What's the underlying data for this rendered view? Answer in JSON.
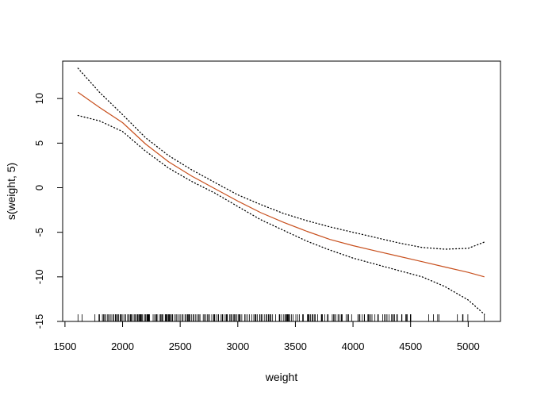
{
  "chart_data": {
    "type": "line",
    "title": "",
    "xlabel": "weight",
    "ylabel": "s(weight, 5)",
    "xlim": [
      1480,
      5280
    ],
    "ylim": [
      -15,
      14.2
    ],
    "x_ticks": [
      1500,
      2000,
      2500,
      3000,
      3500,
      4000,
      4500,
      5000
    ],
    "y_ticks": [
      -15,
      -10,
      -5,
      0,
      5,
      10
    ],
    "grid": false,
    "legend": "none",
    "colors": {
      "fit": "#c8501e",
      "band": "#000000",
      "rug": "#000000",
      "axis": "#000000"
    },
    "series": [
      {
        "role": "fit",
        "style": "solid",
        "x": [
          1613,
          1800,
          2000,
          2200,
          2400,
          2600,
          2800,
          3000,
          3200,
          3400,
          3600,
          3800,
          4000,
          4200,
          4400,
          4600,
          4800,
          5000,
          5140
        ],
        "y": [
          10.7,
          9.0,
          7.3,
          4.9,
          2.9,
          1.3,
          -0.1,
          -1.5,
          -2.8,
          -3.9,
          -4.9,
          -5.8,
          -6.5,
          -7.1,
          -7.7,
          -8.3,
          -8.9,
          -9.5,
          -10.0
        ]
      },
      {
        "role": "upper",
        "style": "dotted",
        "x": [
          1613,
          1800,
          2000,
          2200,
          2400,
          2600,
          2800,
          3000,
          3200,
          3400,
          3600,
          3800,
          4000,
          4200,
          4400,
          4600,
          4800,
          5000,
          5140
        ],
        "y": [
          13.4,
          10.7,
          8.2,
          5.6,
          3.6,
          2.0,
          0.6,
          -0.8,
          -1.9,
          -2.9,
          -3.7,
          -4.4,
          -5.0,
          -5.6,
          -6.2,
          -6.7,
          -6.9,
          -6.8,
          -6.1
        ]
      },
      {
        "role": "lower",
        "style": "dotted",
        "x": [
          1613,
          1800,
          2000,
          2200,
          2400,
          2600,
          2800,
          3000,
          3200,
          3400,
          3600,
          3800,
          4000,
          4200,
          4400,
          4600,
          4800,
          5000,
          5140
        ],
        "y": [
          8.1,
          7.5,
          6.3,
          4.1,
          2.2,
          0.7,
          -0.6,
          -2.1,
          -3.6,
          -4.8,
          -6.0,
          -7.0,
          -7.9,
          -8.6,
          -9.3,
          -10.0,
          -11.1,
          -12.6,
          -14.2
        ]
      }
    ],
    "rug": [
      1613,
      1649,
      1760,
      1795,
      1800,
      1825,
      1835,
      1845,
      1850,
      1867,
      1875,
      1890,
      1900,
      1915,
      1925,
      1937,
      1940,
      1950,
      1955,
      1965,
      1980,
      1985,
      1990,
      2003,
      2020,
      2025,
      2045,
      2050,
      2065,
      2070,
      2075,
      2085,
      2100,
      2108,
      2110,
      2125,
      2130,
      2135,
      2145,
      2150,
      2155,
      2160,
      2164,
      2171,
      2189,
      2190,
      2200,
      2210,
      2215,
      2219,
      2220,
      2223,
      2226,
      2230,
      2234,
      2265,
      2278,
      2290,
      2295,
      2300,
      2320,
      2330,
      2335,
      2345,
      2350,
      2370,
      2375,
      2379,
      2385,
      2395,
      2400,
      2405,
      2408,
      2410,
      2420,
      2430,
      2434,
      2450,
      2464,
      2472,
      2490,
      2500,
      2515,
      2525,
      2542,
      2545,
      2560,
      2565,
      2572,
      2575,
      2582,
      2585,
      2600,
      2615,
      2620,
      2635,
      2648,
      2660,
      2670,
      2672,
      2700,
      2711,
      2720,
      2735,
      2745,
      2755,
      2774,
      2790,
      2795,
      2800,
      2815,
      2830,
      2833,
      2855,
      2865,
      2870,
      2890,
      2900,
      2905,
      2910,
      2930,
      2933,
      2945,
      2950,
      2965,
      2972,
      2979,
      2990,
      3003,
      3012,
      3015,
      3021,
      3035,
      3060,
      3070,
      3085,
      3102,
      3121,
      3139,
      3151,
      3155,
      3158,
      3169,
      3190,
      3193,
      3205,
      3210,
      3230,
      3245,
      3250,
      3265,
      3270,
      3282,
      3288,
      3302,
      3329,
      3360,
      3365,
      3380,
      3399,
      3410,
      3420,
      3425,
      3430,
      3433,
      3439,
      3445,
      3449,
      3465,
      3480,
      3504,
      3520,
      3535,
      3563,
      3570,
      3605,
      3609,
      3613,
      3620,
      3632,
      3645,
      3651,
      3664,
      3672,
      3693,
      3725,
      3730,
      3735,
      3755,
      3777,
      3785,
      3820,
      3830,
      3840,
      3850,
      3870,
      3880,
      3897,
      3900,
      3907,
      3940,
      3955,
      3962,
      3988,
      4042,
      4054,
      4060,
      4080,
      4098,
      4100,
      4129,
      4135,
      4140,
      4154,
      4165,
      4190,
      4215,
      4220,
      4257,
      4274,
      4278,
      4294,
      4295,
      4312,
      4335,
      4341,
      4354,
      4360,
      4380,
      4385,
      4422,
      4425,
      4457,
      4464,
      4472,
      4498,
      4499,
      4502,
      4657,
      4699,
      4735,
      4746,
      4906,
      4951,
      4955,
      4997,
      5140
    ]
  }
}
